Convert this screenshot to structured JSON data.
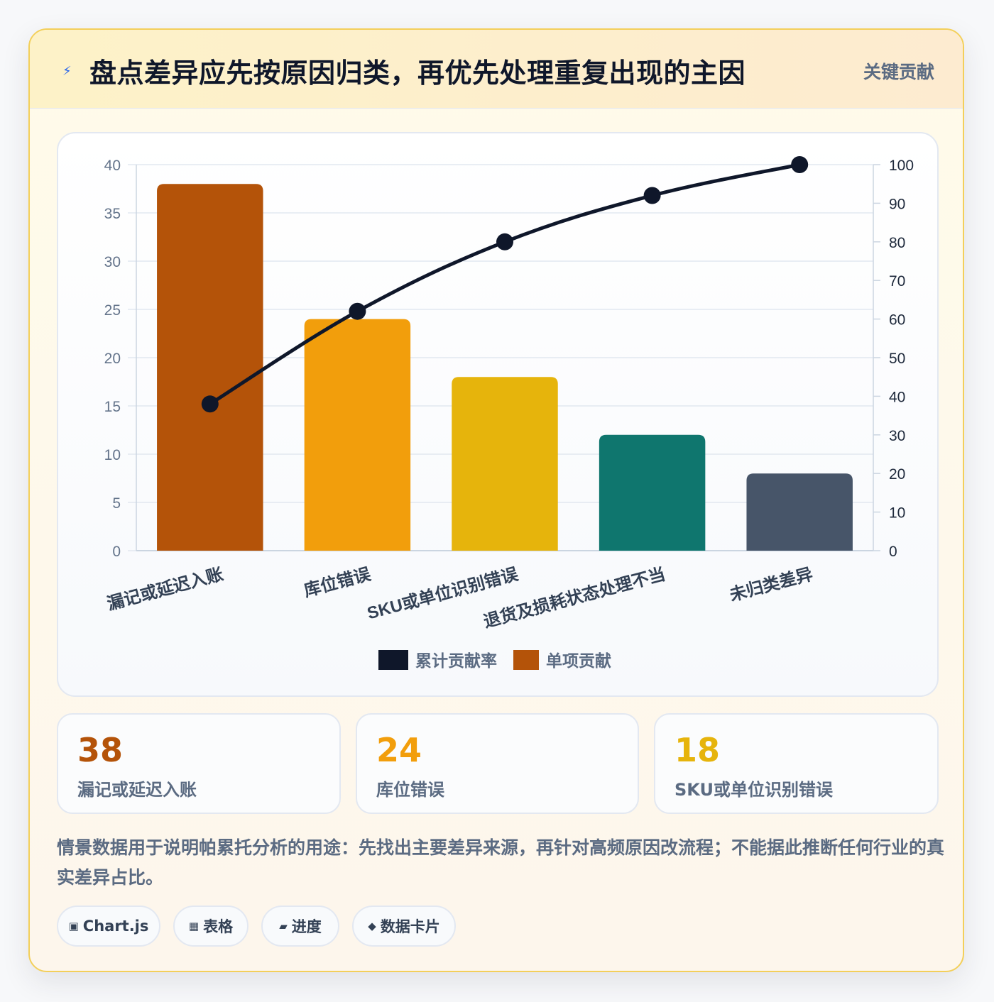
{
  "header": {
    "icon": "lightning-bolt-icon",
    "title": "盘点差异应先按原因归类，再优先处理重复出现的主因",
    "badge": "关键贡献"
  },
  "chart_data": {
    "type": "bar",
    "categories": [
      "漏记或延迟入账",
      "库位错误",
      "SKU或单位识别错误",
      "退货及损耗状态处理不当",
      "未归类差异"
    ],
    "series": [
      {
        "name": "单项贡献",
        "type": "bar",
        "axis": "left",
        "values": [
          38,
          24,
          18,
          12,
          8
        ],
        "colors": [
          "#b45309",
          "#f29e0c",
          "#e6b40c",
          "#0f766e",
          "#475569"
        ]
      },
      {
        "name": "累计贡献率",
        "type": "line",
        "axis": "right",
        "values": [
          38,
          62,
          80,
          92,
          100
        ],
        "color": "#0f172a"
      }
    ],
    "left_axis": {
      "ylim": [
        0,
        40
      ],
      "ticks": [
        "0",
        "5",
        "10",
        "15",
        "20",
        "25",
        "30",
        "35",
        "40"
      ]
    },
    "right_axis": {
      "ylim": [
        0,
        100
      ],
      "ticks": [
        "0",
        "10",
        "20",
        "30",
        "40",
        "50",
        "60",
        "70",
        "80",
        "90",
        "100"
      ]
    },
    "legend": {
      "placement": "bottom",
      "items": [
        {
          "label": "累计贡献率",
          "color": "#0f172a"
        },
        {
          "label": "单项贡献",
          "color": "#b45309"
        }
      ]
    },
    "grid": true
  },
  "stats": [
    {
      "value": "38",
      "label": "漏记或延迟入账",
      "color": "#b45309"
    },
    {
      "value": "24",
      "label": "库位错误",
      "color": "#f29e0c"
    },
    {
      "value": "18",
      "label": "SKU或单位识别错误",
      "color": "#e6b40c"
    }
  ],
  "note": "情景数据用于说明帕累托分析的用途：先找出主要差异来源，再针对高频原因改流程；不能据此推断任何行业的真实差异占比。",
  "tags": [
    {
      "icon": "▣",
      "icon_name": "chart-icon",
      "label": "Chart.js"
    },
    {
      "icon": "▦",
      "icon_name": "table-icon",
      "label": "表格"
    },
    {
      "icon": "▰",
      "icon_name": "progress-icon",
      "label": "进度"
    },
    {
      "icon": "◆",
      "icon_name": "data-card-icon",
      "label": "数据卡片"
    }
  ]
}
